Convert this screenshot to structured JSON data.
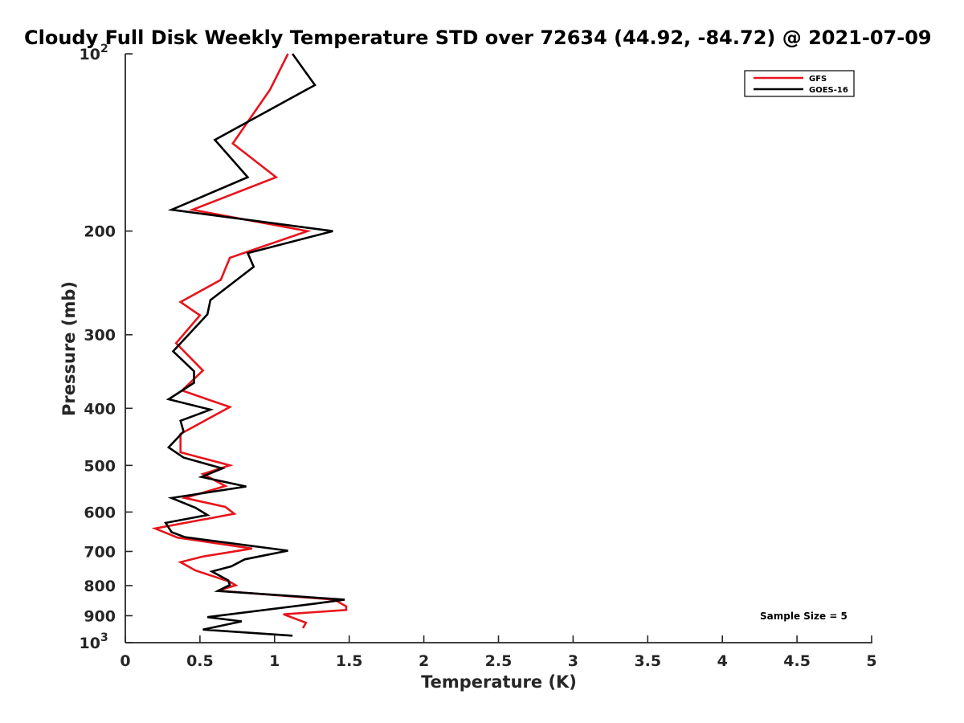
{
  "chart_data": {
    "type": "line",
    "title": "Cloudy Full Disk Weekly Temperature STD over 72634 (44.92, -84.72) @ 2021-07-09",
    "xlabel": "Temperature (K)",
    "ylabel": "Pressure (mb)",
    "xlim": [
      0,
      5
    ],
    "ylim": [
      100,
      1000
    ],
    "y_scale": "log",
    "y_reversed": true,
    "grid": false,
    "legend_position": "top-right",
    "x_ticks": [
      "0",
      "0.5",
      "1",
      "1.5",
      "2",
      "2.5",
      "3",
      "3.5",
      "4",
      "4.5",
      "5"
    ],
    "y_ticks": [
      {
        "value": 100,
        "base": "10",
        "exp": "2"
      },
      {
        "value": 200,
        "label": "200"
      },
      {
        "value": 300,
        "label": "300"
      },
      {
        "value": 400,
        "label": "400"
      },
      {
        "value": 500,
        "label": "500"
      },
      {
        "value": 600,
        "label": "600"
      },
      {
        "value": 700,
        "label": "700"
      },
      {
        "value": 800,
        "label": "800"
      },
      {
        "value": 900,
        "label": "900"
      },
      {
        "value": 1000,
        "base": "10",
        "exp": "3"
      }
    ],
    "series": [
      {
        "name": "GFS",
        "color": "#e8141b",
        "points": [
          [
            1.09,
            100
          ],
          [
            0.97,
            115
          ],
          [
            0.78,
            135
          ],
          [
            0.72,
            142
          ],
          [
            1.01,
            162
          ],
          [
            0.45,
            184
          ],
          [
            1.22,
            200
          ],
          [
            0.7,
            222
          ],
          [
            0.64,
            242
          ],
          [
            0.37,
            264
          ],
          [
            0.5,
            278
          ],
          [
            0.34,
            310
          ],
          [
            0.52,
            345
          ],
          [
            0.38,
            373
          ],
          [
            0.7,
            398
          ],
          [
            0.37,
            442
          ],
          [
            0.37,
            475
          ],
          [
            0.7,
            500
          ],
          [
            0.52,
            517
          ],
          [
            0.67,
            542
          ],
          [
            0.4,
            568
          ],
          [
            0.67,
            588
          ],
          [
            0.73,
            604
          ],
          [
            0.2,
            640
          ],
          [
            0.35,
            663
          ],
          [
            0.85,
            692
          ],
          [
            0.52,
            714
          ],
          [
            0.37,
            730
          ],
          [
            0.47,
            754
          ],
          [
            0.7,
            788
          ],
          [
            0.74,
            799
          ],
          [
            0.62,
            816
          ],
          [
            1.4,
            845
          ],
          [
            1.48,
            868
          ],
          [
            1.48,
            880
          ],
          [
            1.06,
            895
          ],
          [
            1.21,
            925
          ],
          [
            1.19,
            945
          ]
        ]
      },
      {
        "name": "GOES-16",
        "color": "#000000",
        "points": [
          [
            1.12,
            100
          ],
          [
            1.27,
            113
          ],
          [
            0.6,
            140
          ],
          [
            0.82,
            162
          ],
          [
            0.31,
            184
          ],
          [
            1.39,
            200
          ],
          [
            0.82,
            218
          ],
          [
            0.86,
            230
          ],
          [
            0.57,
            262
          ],
          [
            0.55,
            277
          ],
          [
            0.32,
            320
          ],
          [
            0.46,
            346
          ],
          [
            0.46,
            362
          ],
          [
            0.29,
            386
          ],
          [
            0.57,
            402
          ],
          [
            0.37,
            420
          ],
          [
            0.39,
            438
          ],
          [
            0.29,
            466
          ],
          [
            0.39,
            485
          ],
          [
            0.65,
            506
          ],
          [
            0.51,
            523
          ],
          [
            0.81,
            543
          ],
          [
            0.31,
            568
          ],
          [
            0.47,
            590
          ],
          [
            0.55,
            607
          ],
          [
            0.27,
            626
          ],
          [
            0.31,
            649
          ],
          [
            0.4,
            662
          ],
          [
            1.09,
            698
          ],
          [
            0.8,
            722
          ],
          [
            0.71,
            742
          ],
          [
            0.58,
            757
          ],
          [
            0.69,
            784
          ],
          [
            0.7,
            798
          ],
          [
            0.62,
            817
          ],
          [
            1.47,
            845
          ],
          [
            1.28,
            858
          ],
          [
            0.55,
            905
          ],
          [
            0.78,
            920
          ],
          [
            0.52,
            950
          ],
          [
            1.12,
            973
          ]
        ]
      }
    ],
    "annotations": [
      "Sample Size = 5"
    ]
  }
}
